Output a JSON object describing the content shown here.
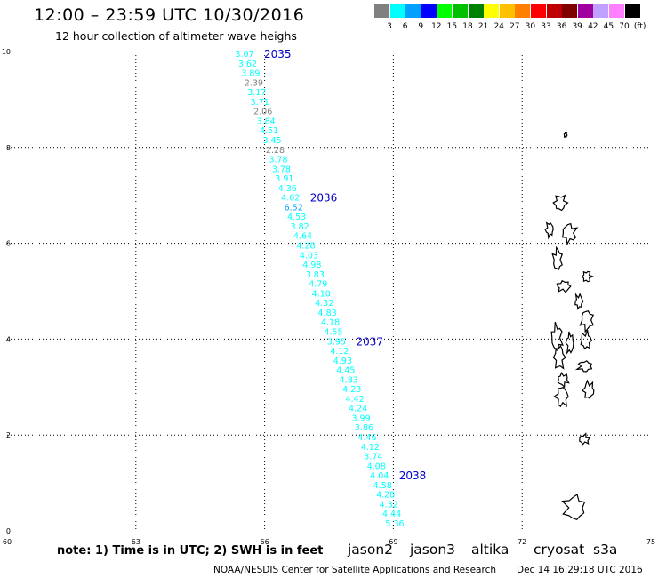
{
  "header": {
    "title": "12:00 – 23:59 UTC 10/30/2016",
    "subtitle": "12 hour collection of altimeter wave heighs"
  },
  "color_scale": {
    "colors": [
      "#808080",
      "#00ffff",
      "#00a0ff",
      "#0000ff",
      "#00ff00",
      "#00c000",
      "#008000",
      "#ffff00",
      "#ffc000",
      "#ff8000",
      "#ff0000",
      "#c00000",
      "#800000",
      "#a000a0",
      "#c0a0ff",
      "#ff80ff",
      "#000000"
    ],
    "labels": [
      "3",
      "6",
      "9",
      "12",
      "15",
      "18",
      "21",
      "24",
      "27",
      "30",
      "33",
      "36",
      "39",
      "42",
      "45",
      "70",
      "(ft)"
    ]
  },
  "axes": {
    "x_ticks": [
      "60",
      "63",
      "66",
      "69",
      "72",
      "75"
    ],
    "y_ticks": [
      "0",
      "2",
      "4",
      "6",
      "8",
      "10"
    ]
  },
  "map": {
    "lon_range": [
      60,
      75
    ],
    "lat_range": [
      0,
      10
    ],
    "grid_lons": [
      63,
      66,
      69,
      72
    ],
    "grid_lats": [
      2,
      4,
      6,
      8
    ],
    "track_points": [
      {
        "value": "3.07",
        "color": "#00ffff"
      },
      {
        "value": "3.62",
        "color": "#00ffff"
      },
      {
        "value": "3.89",
        "color": "#00ffff"
      },
      {
        "value": "2.39",
        "color": "#808080"
      },
      {
        "value": "3.17",
        "color": "#00ffff"
      },
      {
        "value": "3.71",
        "color": "#00ffff"
      },
      {
        "value": "2.06",
        "color": "#808080"
      },
      {
        "value": "3.84",
        "color": "#00ffff"
      },
      {
        "value": "4.51",
        "color": "#00ffff"
      },
      {
        "value": "3.45",
        "color": "#00ffff"
      },
      {
        "value": "2.28",
        "color": "#808080"
      },
      {
        "value": "3.78",
        "color": "#00ffff"
      },
      {
        "value": "3.78",
        "color": "#00ffff"
      },
      {
        "value": "3.91",
        "color": "#00ffff"
      },
      {
        "value": "4.36",
        "color": "#00ffff"
      },
      {
        "value": "4.02",
        "color": "#00ffff"
      },
      {
        "value": "6.52",
        "color": "#00a0ff"
      },
      {
        "value": "4.53",
        "color": "#00ffff"
      },
      {
        "value": "3.82",
        "color": "#00ffff"
      },
      {
        "value": "4.64",
        "color": "#00ffff"
      },
      {
        "value": "4.28",
        "color": "#00ffff"
      },
      {
        "value": "4.03",
        "color": "#00ffff"
      },
      {
        "value": "4.98",
        "color": "#00ffff"
      },
      {
        "value": "3.83",
        "color": "#00ffff"
      },
      {
        "value": "4.79",
        "color": "#00ffff"
      },
      {
        "value": "4.10",
        "color": "#00ffff"
      },
      {
        "value": "4.32",
        "color": "#00ffff"
      },
      {
        "value": "4.83",
        "color": "#00ffff"
      },
      {
        "value": "4.18",
        "color": "#00ffff"
      },
      {
        "value": "4.55",
        "color": "#00ffff"
      },
      {
        "value": "3.95",
        "color": "#00ffff"
      },
      {
        "value": "4.12",
        "color": "#00ffff"
      },
      {
        "value": "4.93",
        "color": "#00ffff"
      },
      {
        "value": "4.45",
        "color": "#00ffff"
      },
      {
        "value": "4.83",
        "color": "#00ffff"
      },
      {
        "value": "4.23",
        "color": "#00ffff"
      },
      {
        "value": "4.42",
        "color": "#00ffff"
      },
      {
        "value": "4.24",
        "color": "#00ffff"
      },
      {
        "value": "3.99",
        "color": "#00ffff"
      },
      {
        "value": "3.86",
        "color": "#00ffff"
      },
      {
        "value": "4.46",
        "color": "#00ffff"
      },
      {
        "value": "4.12",
        "color": "#00ffff"
      },
      {
        "value": "3.74",
        "color": "#00ffff"
      },
      {
        "value": "4.08",
        "color": "#00ffff"
      },
      {
        "value": "4.04",
        "color": "#00ffff"
      },
      {
        "value": "4.58",
        "color": "#00ffff"
      },
      {
        "value": "4.28",
        "color": "#00ffff"
      },
      {
        "value": "4.32",
        "color": "#00ffff"
      },
      {
        "value": "4.44",
        "color": "#00ffff"
      },
      {
        "value": "5.36",
        "color": "#00ffff"
      }
    ],
    "time_labels": [
      {
        "text": "2035",
        "color": "#0000cc",
        "index": 0
      },
      {
        "text": "2036",
        "color": "#0000cc",
        "index": 15
      },
      {
        "text": "2037",
        "color": "#0000cc",
        "index": 30
      },
      {
        "text": "2038",
        "color": "#0000cc",
        "index": 44
      }
    ]
  },
  "footer": {
    "note": "note: 1) Time is in UTC; 2) SWH is in feet",
    "satellites": [
      {
        "name": "jason2",
        "color": "#0000dd"
      },
      {
        "name": "jason3",
        "color": "#00a000"
      },
      {
        "name": "altika",
        "color": "#ff9900"
      },
      {
        "name": "cryosat",
        "color": "#cc0000"
      },
      {
        "name": "s3a",
        "color": "#800000"
      }
    ],
    "credit": "NOAA/NESDIS Center for Satellite Applications and Research",
    "timestamp": "Dec 14 16:29:18 UTC 2016"
  }
}
